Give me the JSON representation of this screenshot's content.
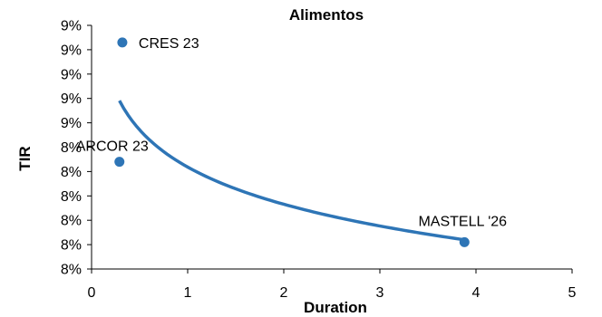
{
  "chart_data": {
    "type": "scatter",
    "title": "Alimentos",
    "xlabel": "Duration",
    "ylabel": "TIR",
    "xlim": [
      0,
      5
    ],
    "ylim": [
      0.08,
      0.09
    ],
    "xticks": [
      "0",
      "1",
      "2",
      "3",
      "4",
      "5"
    ],
    "yticks": [
      "8%",
      "8%",
      "8%",
      "8%",
      "8%",
      "8%",
      "9%",
      "9%",
      "9%",
      "9%",
      "9%"
    ],
    "grid": false,
    "legend": false,
    "colors": {
      "points": "#2e75b6",
      "trend": "#2e75b6"
    },
    "points": [
      {
        "label": "CRES 23",
        "x": 0.32,
        "y": 0.0893
      },
      {
        "label": "ARCOR 23",
        "x": 0.29,
        "y": 0.0844
      },
      {
        "label": "MASTELL '26",
        "x": 3.88,
        "y": 0.0811
      }
    ],
    "trendline": {
      "type": "logarithmic",
      "x_start": 0.29,
      "x_end": 3.88
    }
  }
}
